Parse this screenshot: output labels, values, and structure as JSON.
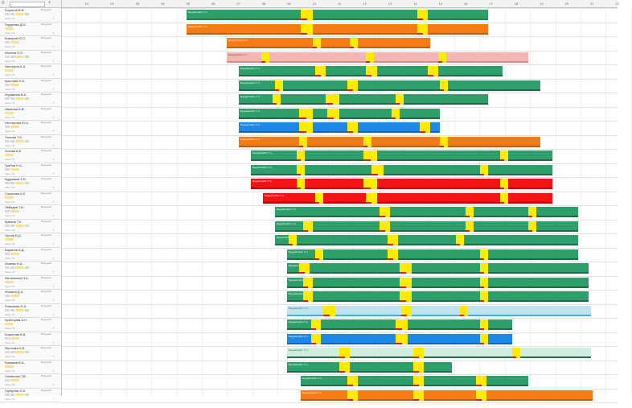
{
  "toolbar": {
    "menu_glyph": "≡",
    "search_placeholder": "",
    "add_glyph": "+"
  },
  "time_header": {
    "hours": [
      "01",
      "02",
      "03",
      "04",
      "05",
      "06",
      "07",
      "08",
      "09",
      "10",
      "11",
      "12",
      "13",
      "14",
      "15",
      "16",
      "17",
      "18",
      "19",
      "20",
      "21",
      "22"
    ]
  },
  "employees": [
    {
      "name": "Борисов В.В.",
      "role": "Ведущий",
      "sub": "Часы 7/4"
    },
    {
      "name": "Гордеева Д.М.",
      "role": "Ведущий",
      "sub": "Часы 7/4"
    },
    {
      "name": "Комаров Ю.С.",
      "role": "Ведущий",
      "sub": "Часы 7/4"
    },
    {
      "name": "Ильина О.О.",
      "role": "Ведущий",
      "sub": "Часы 7/4"
    },
    {
      "name": "Нестеров А.А.",
      "role": "Ведущий",
      "sub": "Часы 7/4"
    },
    {
      "name": "Крылова Н.А.",
      "role": "Ведущий",
      "sub": "Часы 7/4"
    },
    {
      "name": "Журавлев В.А.",
      "role": "Ведущий",
      "sub": "Часы 7/4"
    },
    {
      "name": "Иванова А.В.",
      "role": "Ведущий",
      "sub": "Часы 7/4"
    },
    {
      "name": "Нестерова Ю.А.",
      "role": "Ведущий",
      "sub": "Часы 7/4"
    },
    {
      "name": "Попова Т.Н.",
      "role": "Ведущий",
      "sub": "Часы 7/4"
    },
    {
      "name": "Зотова А.Е.",
      "role": "Ведущий",
      "sub": "Часы 7/4"
    },
    {
      "name": "Грибов Н.А.",
      "role": "Ведущий",
      "sub": "Часы 7/4"
    },
    {
      "name": "Кудряшов К.В.",
      "role": "Ведущий",
      "sub": "Часы 7/4"
    },
    {
      "name": "Соколова А.Е.",
      "role": "Ведущий",
      "sub": "Часы 7/4"
    },
    {
      "name": "Лебедев Т.В.",
      "role": "Ведущий",
      "sub": "Часы 7/4"
    },
    {
      "name": "Крюков Т.А.",
      "role": "Ведущий",
      "sub": "Часы 7/4"
    },
    {
      "name": "Орлов В.Д.",
      "role": "Ведущий",
      "sub": "Часы 7/4"
    },
    {
      "name": "Баранов А.Д.",
      "role": "Ведущий",
      "sub": "Часы 7/4"
    },
    {
      "name": "Исаева Н.А.",
      "role": "Ведущий",
      "sub": "Часы 7/4"
    },
    {
      "name": "Филиппова Н.А.",
      "role": "Ведущий",
      "sub": "Часы 7/4"
    },
    {
      "name": "Фомина Д.А.",
      "role": "Ведущий",
      "sub": "Часы 7/4"
    },
    {
      "name": "Романова Н.А.",
      "role": "Ведущий",
      "sub": "Часы 7/4"
    },
    {
      "name": "Кузнецова А.Н.",
      "role": "Ведущий",
      "sub": "Часы 7/4"
    },
    {
      "name": "Борисова А.В.",
      "role": "Ведущий",
      "sub": "Часы 7/4"
    },
    {
      "name": "Фролова Н.В.",
      "role": "Ведущий",
      "sub": "Часы 7/4"
    },
    {
      "name": "Ермаков В.А.",
      "role": "Ведущий",
      "sub": "Часы 7/4"
    },
    {
      "name": "Семенова Т.В.",
      "role": "Ведущий",
      "sub": "Часы 7/4"
    },
    {
      "name": "Горбунов О.Б.",
      "role": "Ведущий",
      "sub": "Часы 7/4"
    }
  ],
  "colors": {
    "green": "#2e9e6a",
    "orange": "#f47b16",
    "red": "#f01414",
    "blue": "#1e88e5",
    "yellow": "#ffeb00",
    "pink": "#f4b5b5",
    "light": "#bfe3f0",
    "salmon": "#f08a8a"
  },
  "bar_label": "Ведущий работ (7 ч)"
}
